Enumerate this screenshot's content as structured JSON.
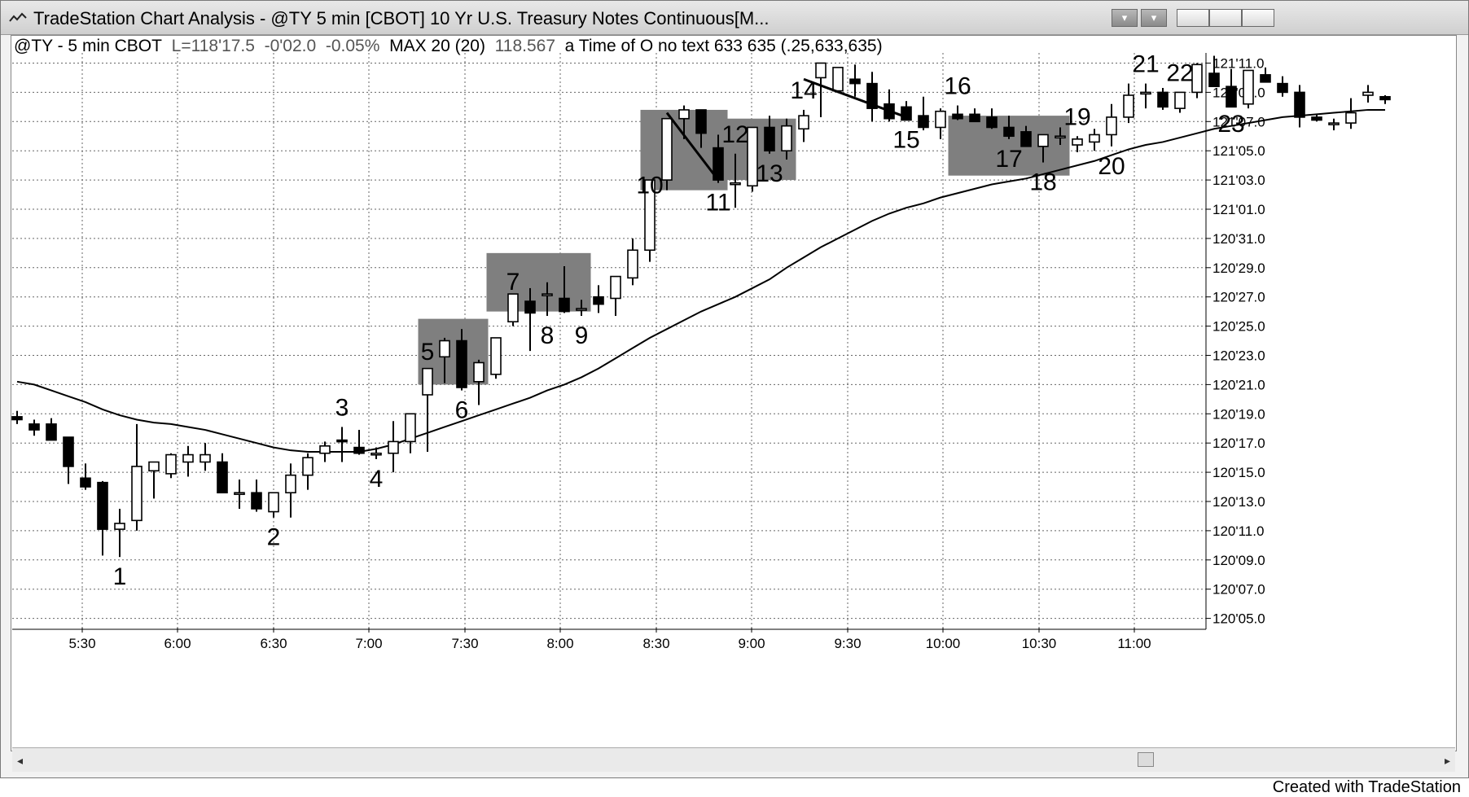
{
  "window": {
    "title": "TradeStation Chart Analysis - @TY 5 min [CBOT] 10 Yr U.S. Treasury Notes Continuous[M...",
    "icon": "chart-icon",
    "buttons": [
      "menu-dropdown",
      "menu-dropdown",
      "minimize",
      "maximize",
      "close"
    ]
  },
  "status": {
    "symbol": "@TY - 5 min CBOT",
    "last": "L=118'17.5",
    "change": "-0'02.0",
    "pct": "-0.05%",
    "indicator": "MAX 20 (20)",
    "indicator_value": "118.567",
    "study": "a Time of O no text 633 635 (.25,633,635)"
  },
  "footer": {
    "credit": "Created with TradeStation"
  },
  "colors": {
    "background": "#ffffff",
    "candle_down": "#000000",
    "candle_up": "#ffffff",
    "box": "#7f7f7f",
    "grid": "#555555"
  },
  "chart_data": {
    "type": "candlestick",
    "x_ticks": [
      "5:30",
      "6:00",
      "6:30",
      "7:00",
      "7:30",
      "8:00",
      "8:30",
      "9:00",
      "9:30",
      "10:00",
      "10:30",
      "11:00"
    ],
    "y_ticks": [
      "121'11.0",
      "121'09.0",
      "121'07.0",
      "121'05.0",
      "121'03.0",
      "121'01.0",
      "120'31.0",
      "120'29.0",
      "120'27.0",
      "120'25.0",
      "120'23.0",
      "120'21.0",
      "120'19.0",
      "120'17.0",
      "120'15.0",
      "120'13.0",
      "120'11.0",
      "120'09.0",
      "120'07.0",
      "120'05.0"
    ],
    "y_range_32nds": [
      3844,
      3880
    ],
    "grid": true,
    "bars_ohlc_32nds": [
      [
        3855.8,
        3856.2,
        3855.3,
        3855.6
      ],
      [
        3855.3,
        3855.6,
        3854.5,
        3854.9
      ],
      [
        3855.3,
        3855.7,
        3854.2,
        3854.2
      ],
      [
        3854.4,
        3854.4,
        3851.2,
        3852.4
      ],
      [
        3851.6,
        3852.6,
        3850.8,
        3851.0
      ],
      [
        3851.3,
        3851.4,
        3846.3,
        3848.1
      ],
      [
        3848.1,
        3849.5,
        3846.2,
        3848.5
      ],
      [
        3848.7,
        3855.3,
        3848.0,
        3852.4
      ],
      [
        3852.1,
        3852.7,
        3850.2,
        3852.7
      ],
      [
        3851.9,
        3853.3,
        3851.6,
        3853.2
      ],
      [
        3852.7,
        3853.8,
        3851.7,
        3853.2
      ],
      [
        3852.7,
        3854.0,
        3852.1,
        3853.2
      ],
      [
        3852.7,
        3853.3,
        3851.0,
        3850.6
      ],
      [
        3850.6,
        3851.5,
        3849.5,
        3850.6
      ],
      [
        3850.6,
        3851.5,
        3849.3,
        3849.5
      ],
      [
        3849.3,
        3850.2,
        3848.9,
        3850.6
      ],
      [
        3850.6,
        3852.6,
        3848.9,
        3851.8
      ],
      [
        3851.8,
        3853.3,
        3850.8,
        3853.0
      ],
      [
        3853.3,
        3854.1,
        3852.7,
        3853.8
      ],
      [
        3854.2,
        3855.1,
        3852.7,
        3854.1
      ],
      [
        3853.7,
        3854.9,
        3853.2,
        3853.3
      ],
      [
        3853.3,
        3853.7,
        3852.9,
        3853.3
      ],
      [
        3853.3,
        3855.5,
        3852.0,
        3854.1
      ],
      [
        3854.1,
        3856.0,
        3853.3,
        3856.0
      ],
      [
        3857.3,
        3858.9,
        3853.4,
        3859.1
      ],
      [
        3859.9,
        3861.2,
        3858.1,
        3861.0
      ],
      [
        3861.0,
        3861.8,
        3857.6,
        3857.8
      ],
      [
        3858.2,
        3859.7,
        3856.6,
        3859.5
      ],
      [
        3858.7,
        3860.4,
        3858.4,
        3861.2
      ],
      [
        3862.3,
        3863.7,
        3862.0,
        3864.2
      ],
      [
        3863.7,
        3864.6,
        3860.3,
        3862.9
      ],
      [
        3864.1,
        3865.0,
        3862.7,
        3864.2
      ],
      [
        3863.9,
        3866.1,
        3862.9,
        3863.0
      ],
      [
        3863.2,
        3863.8,
        3862.7,
        3863.2
      ],
      [
        3864.0,
        3864.8,
        3862.9,
        3863.5
      ],
      [
        3863.9,
        3864.9,
        3862.7,
        3865.4
      ],
      [
        3865.3,
        3868.0,
        3864.8,
        3867.2
      ],
      [
        3867.2,
        3870.3,
        3866.4,
        3872.0
      ],
      [
        3872.0,
        3876.0,
        3871.3,
        3876.2
      ],
      [
        3876.2,
        3877.1,
        3874.8,
        3876.8
      ],
      [
        3876.8,
        3876.8,
        3874.2,
        3875.2
      ],
      [
        3874.2,
        3875.1,
        3871.8,
        3872.0
      ],
      [
        3871.8,
        3873.8,
        3870.1,
        3871.8
      ],
      [
        3871.6,
        3875.2,
        3871.2,
        3875.6
      ],
      [
        3875.6,
        3876.4,
        3873.8,
        3874.0
      ],
      [
        3874.0,
        3876.2,
        3873.4,
        3875.7
      ],
      [
        3875.5,
        3876.8,
        3874.6,
        3876.4
      ],
      [
        3879.0,
        3880.0,
        3876.3,
        3880.0
      ],
      [
        3878.1,
        3879.5,
        3878.0,
        3879.7
      ],
      [
        3878.9,
        3879.9,
        3877.7,
        3878.6
      ],
      [
        3878.6,
        3879.4,
        3876.0,
        3876.9
      ],
      [
        3877.2,
        3878.2,
        3876.0,
        3876.2
      ],
      [
        3877.0,
        3877.4,
        3876.1,
        3876.1
      ],
      [
        3876.4,
        3877.7,
        3875.4,
        3875.6
      ],
      [
        3875.6,
        3876.9,
        3874.8,
        3876.7
      ],
      [
        3876.5,
        3877.1,
        3876.1,
        3876.2
      ],
      [
        3876.5,
        3876.9,
        3876.0,
        3876.0
      ],
      [
        3876.3,
        3876.9,
        3875.5,
        3875.6
      ],
      [
        3875.6,
        3876.4,
        3874.8,
        3875.0
      ],
      [
        3875.3,
        3875.7,
        3874.4,
        3874.3
      ],
      [
        3874.3,
        3875.0,
        3873.2,
        3875.1
      ],
      [
        3875.0,
        3875.6,
        3874.4,
        3875.0
      ],
      [
        3874.4,
        3875.0,
        3873.9,
        3874.8
      ],
      [
        3874.6,
        3875.5,
        3874.0,
        3875.1
      ],
      [
        3875.1,
        3877.2,
        3874.3,
        3876.3
      ],
      [
        3876.3,
        3878.6,
        3875.9,
        3877.8
      ],
      [
        3877.9,
        3878.6,
        3876.9,
        3878.0
      ],
      [
        3878.0,
        3878.3,
        3876.8,
        3877.0
      ],
      [
        3876.9,
        3878.0,
        3876.6,
        3878.0
      ],
      [
        3878.0,
        3880.0,
        3877.6,
        3879.9
      ],
      [
        3879.3,
        3880.5,
        3878.9,
        3878.4
      ],
      [
        3878.4,
        3879.6,
        3877.2,
        3877.0
      ],
      [
        3877.2,
        3879.4,
        3876.9,
        3879.5
      ],
      [
        3879.2,
        3879.7,
        3878.7,
        3878.7
      ],
      [
        3878.6,
        3879.1,
        3877.7,
        3878.0
      ],
      [
        3878.0,
        3878.5,
        3875.6,
        3876.3
      ],
      [
        3876.3,
        3876.5,
        3876.0,
        3876.1
      ],
      [
        3875.8,
        3876.2,
        3875.4,
        3875.9
      ],
      [
        3875.9,
        3877.6,
        3875.5,
        3876.6
      ],
      [
        3877.8,
        3878.5,
        3877.3,
        3878.0
      ],
      [
        3877.7,
        3877.8,
        3877.2,
        3877.5
      ]
    ],
    "moving_average": [
      3858.2,
      3858.0,
      3857.6,
      3857.2,
      3856.8,
      3856.3,
      3855.9,
      3855.6,
      3855.4,
      3855.3,
      3855.1,
      3854.9,
      3854.6,
      3854.3,
      3854.0,
      3853.7,
      3853.5,
      3853.4,
      3853.4,
      3853.4,
      3853.4,
      3853.6,
      3853.9,
      3854.3,
      3854.7,
      3855.1,
      3855.5,
      3855.9,
      3856.3,
      3856.7,
      3857.1,
      3857.6,
      3858.0,
      3858.5,
      3859.1,
      3859.8,
      3860.5,
      3861.2,
      3861.8,
      3862.4,
      3863.0,
      3863.5,
      3864.0,
      3864.6,
      3865.2,
      3866.0,
      3866.7,
      3867.4,
      3868.0,
      3868.6,
      3869.2,
      3869.7,
      3870.1,
      3870.4,
      3870.8,
      3871.1,
      3871.4,
      3871.7,
      3871.9,
      3872.1,
      3872.4,
      3872.7,
      3873.0,
      3873.3,
      3873.7,
      3874.1,
      3874.4,
      3874.6,
      3874.9,
      3875.2,
      3875.5,
      3875.7,
      3875.9,
      3876.1,
      3876.3,
      3876.4,
      3876.5,
      3876.6,
      3876.7,
      3876.8,
      3876.8
    ],
    "wave_labels": [
      {
        "text": "1",
        "bar": 6,
        "at": "low"
      },
      {
        "text": "2",
        "bar": 15,
        "at": "low"
      },
      {
        "text": "3",
        "bar": 19,
        "at": "high"
      },
      {
        "text": "4",
        "bar": 21,
        "at": "low"
      },
      {
        "text": "5",
        "bar": 24,
        "at": "high"
      },
      {
        "text": "6",
        "bar": 26,
        "at": "low"
      },
      {
        "text": "7",
        "bar": 29,
        "at": "high"
      },
      {
        "text": "8",
        "bar": 31,
        "at": "low"
      },
      {
        "text": "9",
        "bar": 33,
        "at": "low"
      },
      {
        "text": "10",
        "bar": 37,
        "at": "high"
      },
      {
        "text": "11",
        "bar": 41,
        "at": "low"
      },
      {
        "text": "12",
        "bar": 42,
        "at": "high"
      },
      {
        "text": "13",
        "bar": 44,
        "at": "low"
      },
      {
        "text": "14",
        "bar": 46,
        "at": "high"
      },
      {
        "text": "15",
        "bar": 52,
        "at": "low"
      },
      {
        "text": "16",
        "bar": 55,
        "at": "high"
      },
      {
        "text": "17",
        "bar": 58,
        "at": "low"
      },
      {
        "text": "18",
        "bar": 60,
        "at": "low"
      },
      {
        "text": "19",
        "bar": 62,
        "at": "high"
      },
      {
        "text": "20",
        "bar": 64,
        "at": "low"
      },
      {
        "text": "21",
        "bar": 66,
        "at": "high"
      },
      {
        "text": "22",
        "bar": 68,
        "at": "high"
      },
      {
        "text": "23",
        "bar": 71,
        "at": "low"
      }
    ],
    "shaded_boxes": [
      [
        24,
        27,
        3858,
        3862.5
      ],
      [
        28,
        33,
        3863.0,
        3867.0
      ],
      [
        37,
        41,
        3871.3,
        3876.8
      ],
      [
        42,
        45,
        3872.0,
        3876.2
      ],
      [
        55,
        61,
        3872.3,
        3876.4
      ]
    ],
    "trend_lines": [
      [
        38,
        3876.6,
        41,
        3872.0
      ],
      [
        46,
        3878.9,
        52,
        3876.3
      ]
    ]
  }
}
